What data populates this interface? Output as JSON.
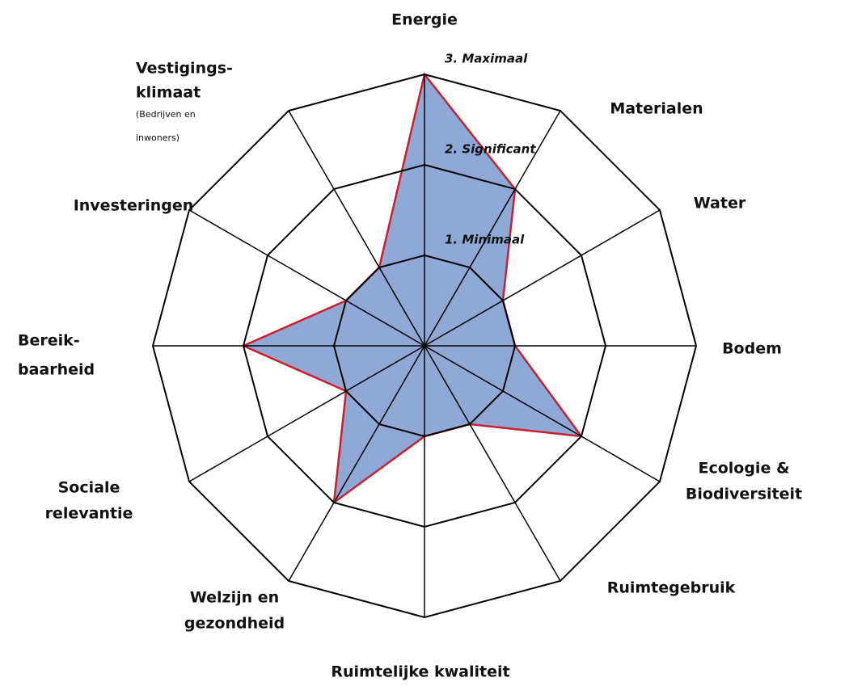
{
  "chart_data": {
    "type": "radar",
    "categories": [
      [
        "Energie"
      ],
      [
        "Materialen"
      ],
      [
        "Water"
      ],
      [
        "Bodem"
      ],
      [
        "Ecologie &",
        "Biodiversiteit"
      ],
      [
        "Ruimtegebruik"
      ],
      [
        "Ruimtelijke kwaliteit"
      ],
      [
        "Welzijn en",
        "gezondheid"
      ],
      [
        "Sociale",
        "relevantie"
      ],
      [
        "Bereik-",
        "baarheid"
      ],
      [
        "Investeringen"
      ],
      [
        "Vestigings-",
        "klimaat"
      ]
    ],
    "annotation": [
      "(Bedrijven en",
      "inwoners)"
    ],
    "series": [
      {
        "color": "#8fa8d6",
        "edge_color": "#c8202e",
        "values": [
          3,
          2,
          1,
          1,
          2,
          1,
          1,
          2,
          1,
          2,
          1,
          1
        ]
      }
    ],
    "rlim": [
      0,
      3
    ],
    "rticks": [
      {
        "value": 1,
        "label": "1. Minimaal"
      },
      {
        "value": 2,
        "label": "2. Significant"
      },
      {
        "value": 3,
        "label": "3. Maximaal"
      }
    ],
    "grid_color": "#000000"
  }
}
